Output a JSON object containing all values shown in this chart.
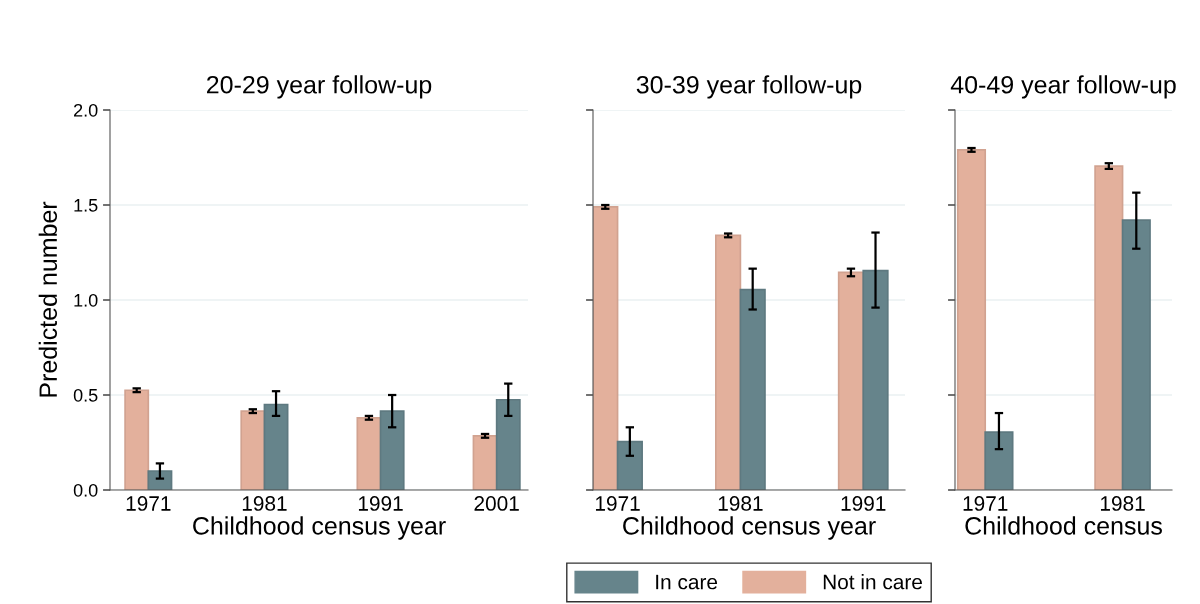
{
  "chart_data": [
    {
      "type": "bar",
      "title": "20-29 year follow-up",
      "xlabel": "Childhood census year",
      "ylabel": "Predicted number",
      "categories": [
        "1971",
        "1981",
        "1991",
        "2001"
      ],
      "ylim": [
        0,
        2
      ],
      "yticks": [
        {
          "value": 0,
          "label": "0.0"
        },
        {
          "value": 0.5,
          "label": "0.5"
        },
        {
          "value": 1,
          "label": "1.0"
        },
        {
          "value": 1.5,
          "label": "1.5"
        },
        {
          "value": 2,
          "label": "2.0"
        }
      ],
      "grid": "y",
      "series": [
        {
          "color": "#e3b09c",
          "values": [
            0.525,
            0.415,
            0.38,
            0.285
          ],
          "errors": [
            0.01,
            0.01,
            0.01,
            0.01
          ]
        },
        {
          "color": "#66848b",
          "values": [
            0.1,
            0.45,
            0.415,
            0.475
          ],
          "errors": [
            [
              0.06,
              0.14
            ],
            [
              0.39,
              0.52
            ],
            [
              0.33,
              0.5
            ],
            [
              0.39,
              0.56
            ]
          ]
        }
      ]
    },
    {
      "type": "bar",
      "title": "30-39 year follow-up",
      "xlabel": "Childhood census year",
      "categories": [
        "1971",
        "1981",
        "1991"
      ],
      "ylim": [
        0,
        2
      ],
      "yticks": [
        {
          "value": 0,
          "label": null
        },
        {
          "value": 0.5,
          "label": null
        },
        {
          "value": 1,
          "label": null
        },
        {
          "value": 1.5,
          "label": null
        },
        {
          "value": 2,
          "label": null
        }
      ],
      "grid": "y",
      "tick_labels": "x",
      "legend": "bottom",
      "series": [
        {
          "name": "Not in care",
          "color": "#e3b09c",
          "values": [
            1.49,
            1.34,
            1.145
          ],
          "errors": [
            0.01,
            0.01,
            0.02
          ]
        },
        {
          "name": "In care",
          "color": "#66848b",
          "values": [
            0.255,
            1.055,
            1.155
          ],
          "errors": [
            [
              0.18,
              0.33
            ],
            [
              0.95,
              1.165
            ],
            [
              0.96,
              1.355
            ]
          ]
        }
      ]
    },
    {
      "type": "bar",
      "title": "40-49 year follow-up",
      "xlabel": "Childhood census",
      "categories": [
        "1971",
        "1981"
      ],
      "ylim": [
        0,
        2
      ],
      "yticks": [
        {
          "value": 0,
          "label": null
        },
        {
          "value": 0.5,
          "label": null
        },
        {
          "value": 1,
          "label": null
        },
        {
          "value": 1.5,
          "label": null
        },
        {
          "value": 2,
          "label": null
        }
      ],
      "grid": "y",
      "tick_labels": "x",
      "series": [
        {
          "color": "#e3b09c",
          "values": [
            1.79,
            1.705
          ],
          "errors": [
            0.01,
            0.015
          ]
        },
        {
          "color": "#66848b",
          "values": [
            0.305,
            1.42
          ],
          "errors": [
            [
              0.215,
              0.405
            ],
            [
              1.27,
              1.565
            ]
          ]
        }
      ]
    }
  ]
}
